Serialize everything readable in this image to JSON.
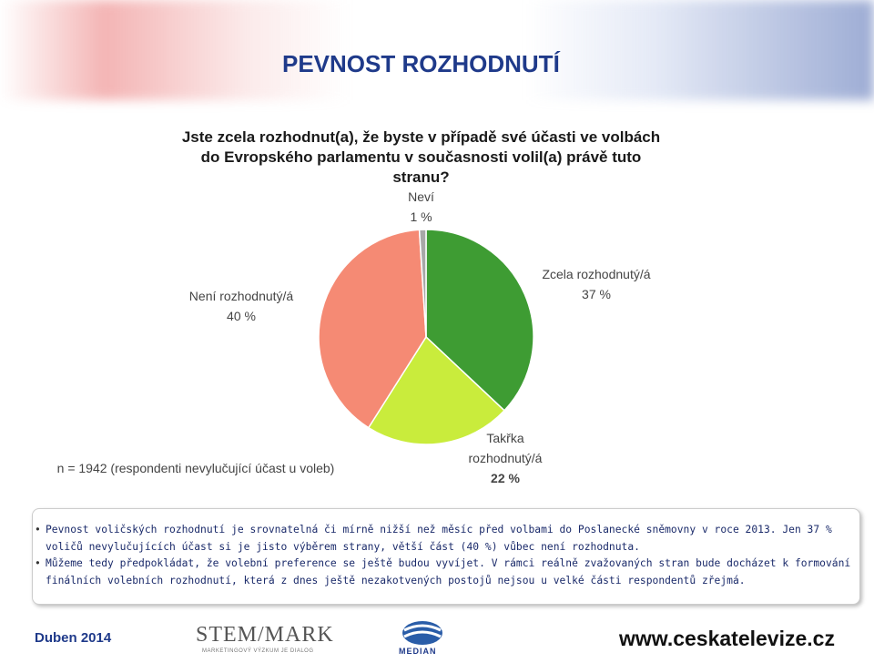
{
  "chart_data": {
    "type": "pie",
    "title": "PEVNOST ROZHODNUTÍ",
    "subtitle": "Jste zcela rozhodnut(a), že byste v případě své účasti ve volbách do Evropského parlamentu v současnosti volil(a) právě tuto stranu?",
    "categories": [
      "Zcela rozhodnutý/á",
      "Takřka rozhodnutý/á",
      "Není rozhodnutý/á",
      "Neví"
    ],
    "values": [
      37,
      22,
      40,
      1
    ],
    "value_labels": [
      "37 %",
      "22 %",
      "40 %",
      "1 %"
    ],
    "colors": [
      "#3e9c33",
      "#c9ec3c",
      "#f58a74",
      "#a8a8a8"
    ],
    "annotation": "n = 1942 (respondenti nevylučující účast u voleb)"
  },
  "notes": [
    "Pevnost voličských rozhodnutí je srovnatelná či mírně nižší než měsíc před volbami do Poslanecké sněmovny v roce 2013. Jen 37 % voličů nevylučujících účast si je jisto výběrem strany, větší část (40 %) vůbec není rozhodnuta.",
    "Můžeme tedy předpokládat, že volební preference se ještě budou vyvíjet. V rámci reálně zvažovaných stran bude docházet k formování finálních volebních rozhodnutí, která z dnes ještě nezakotvených postojů nejsou u velké části respondentů zřejmá."
  ],
  "footer": {
    "date": "Duben 2014",
    "logo1": "STEM/MARK",
    "logo1_tagline": "MARKETINGOVÝ VÝZKUM JE DIALOG",
    "logo2": "MEDIAN",
    "url": "www.ceskatelevize.cz"
  }
}
